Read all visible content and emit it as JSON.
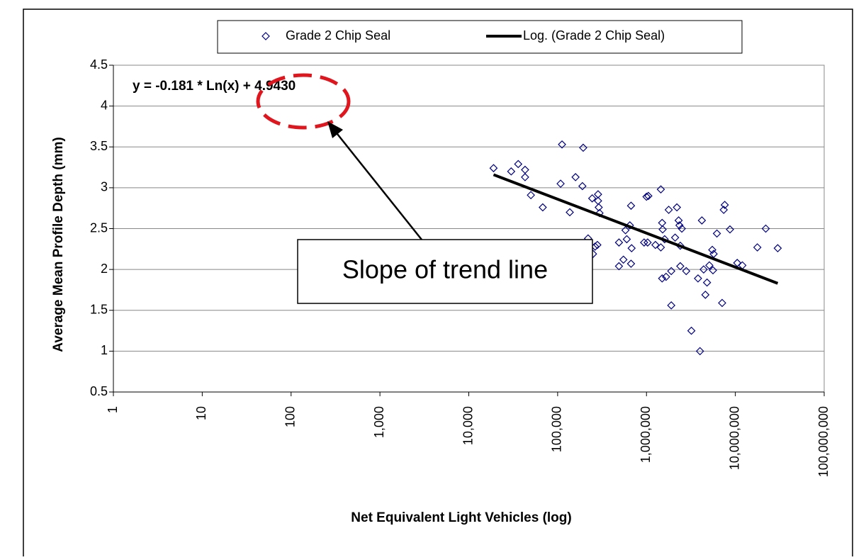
{
  "chart_data": {
    "type": "scatter",
    "xlabel": "Net Equivalent Light Vehicles (log)",
    "ylabel": "Average Mean Profile Depth (mm)",
    "xscale": "log",
    "xlim": [
      1,
      100000000
    ],
    "xticks": [
      1,
      10,
      100,
      {
        "value": 1000,
        "label": "1,000"
      },
      {
        "value": 10000,
        "label": "10,000"
      },
      {
        "value": 100000,
        "label": "100,000"
      },
      {
        "value": 1000000,
        "label": "1,000,000"
      },
      {
        "value": 10000000,
        "label": "10,000,000"
      },
      {
        "value": 100000000,
        "label": "100,000,000"
      }
    ],
    "ylim": [
      0.5,
      4.5
    ],
    "yticks": [
      0.5,
      1,
      1.5,
      2,
      2.5,
      3,
      3.5,
      4,
      4.5
    ],
    "grid": true,
    "legend": "top",
    "series": [
      {
        "name": "Grade 2 Chip Seal",
        "color": "#000080",
        "x": [
          19000,
          30000,
          36000,
          43000,
          43000,
          50000,
          68000,
          108000,
          112000,
          137000,
          159000,
          190000,
          194000,
          220000,
          245000,
          250000,
          264000,
          285000,
          285000,
          290000,
          296000,
          280000,
          490000,
          490000,
          550000,
          580000,
          600000,
          650000,
          670000,
          670000,
          680000,
          940000,
          1000000,
          1050000,
          1030000,
          1260000,
          1450000,
          1500000,
          1520000,
          1450000,
          1500000,
          1600000,
          1660000,
          1780000,
          1900000,
          1900000,
          2100000,
          2200000,
          2300000,
          2350000,
          2400000,
          2400000,
          2500000,
          2800000,
          3200000,
          3800000,
          4000000,
          4200000,
          4400000,
          4600000,
          4800000,
          5100000,
          5500000,
          5600000,
          5700000,
          6200000,
          7100000,
          7400000,
          7600000,
          8700000,
          10500000,
          12000000,
          17700000,
          22000000,
          30000000
        ],
        "values": [
          3.24,
          3.2,
          3.29,
          3.22,
          3.13,
          2.91,
          2.76,
          3.05,
          3.53,
          2.7,
          3.13,
          3.02,
          3.49,
          2.38,
          2.87,
          2.19,
          2.28,
          2.92,
          2.84,
          2.76,
          2.69,
          2.3,
          2.04,
          2.33,
          2.12,
          2.48,
          2.37,
          2.54,
          2.78,
          2.07,
          2.26,
          2.33,
          2.89,
          2.9,
          2.33,
          2.3,
          2.98,
          2.57,
          2.49,
          2.27,
          1.89,
          2.37,
          1.91,
          2.73,
          1.98,
          1.56,
          2.39,
          2.76,
          2.6,
          2.54,
          2.29,
          2.04,
          2.5,
          1.98,
          1.25,
          1.89,
          1.0,
          2.6,
          2.0,
          1.69,
          1.84,
          2.05,
          2.24,
          1.99,
          2.19,
          2.44,
          1.59,
          2.73,
          2.79,
          2.49,
          2.08,
          2.05,
          2.27,
          2.5,
          2.26
        ]
      }
    ],
    "trendline": {
      "name": "Log. (Grade 2 Chip Seal)",
      "color": "#000000",
      "equation": "y = -0.181 * Ln(x) + 4.9430",
      "x": [
        19000,
        30000000
      ],
      "values": [
        3.16,
        1.83
      ]
    },
    "annotation": "Slope of trend line"
  }
}
